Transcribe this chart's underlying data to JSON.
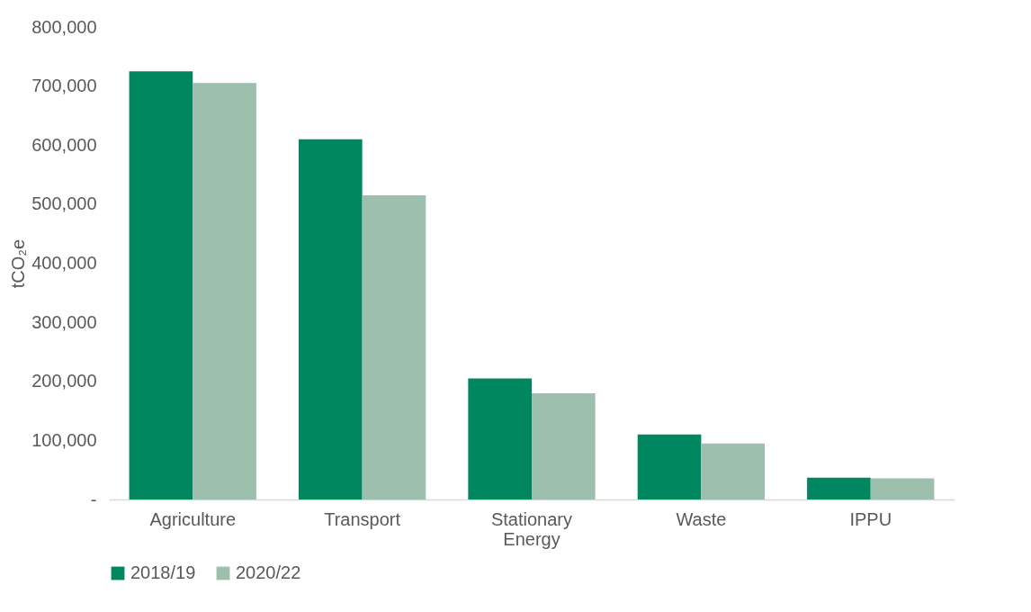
{
  "chart_data": {
    "type": "bar",
    "ylabel": "tCO₂e",
    "categories": [
      "Agriculture",
      "Transport",
      "Stationary Energy",
      "Waste",
      "IPPU"
    ],
    "series": [
      {
        "name": "2018/19",
        "color": "#00875f",
        "values": [
          725000,
          610000,
          205000,
          110000,
          37000
        ]
      },
      {
        "name": "2020/22",
        "color": "#9dbfad",
        "values": [
          705000,
          515000,
          180000,
          95000,
          36000
        ]
      }
    ],
    "ylim": [
      0,
      800000
    ],
    "yticks": [
      {
        "value": 0,
        "label": "-"
      },
      {
        "value": 100000,
        "label": "100,000"
      },
      {
        "value": 200000,
        "label": "200,000"
      },
      {
        "value": 300000,
        "label": "300,000"
      },
      {
        "value": 400000,
        "label": "400,000"
      },
      {
        "value": 500000,
        "label": "500,000"
      },
      {
        "value": 600000,
        "label": "600,000"
      },
      {
        "value": 700000,
        "label": "700,000"
      },
      {
        "value": 800000,
        "label": "800,000"
      }
    ],
    "grid": false,
    "legend": "bottom"
  }
}
